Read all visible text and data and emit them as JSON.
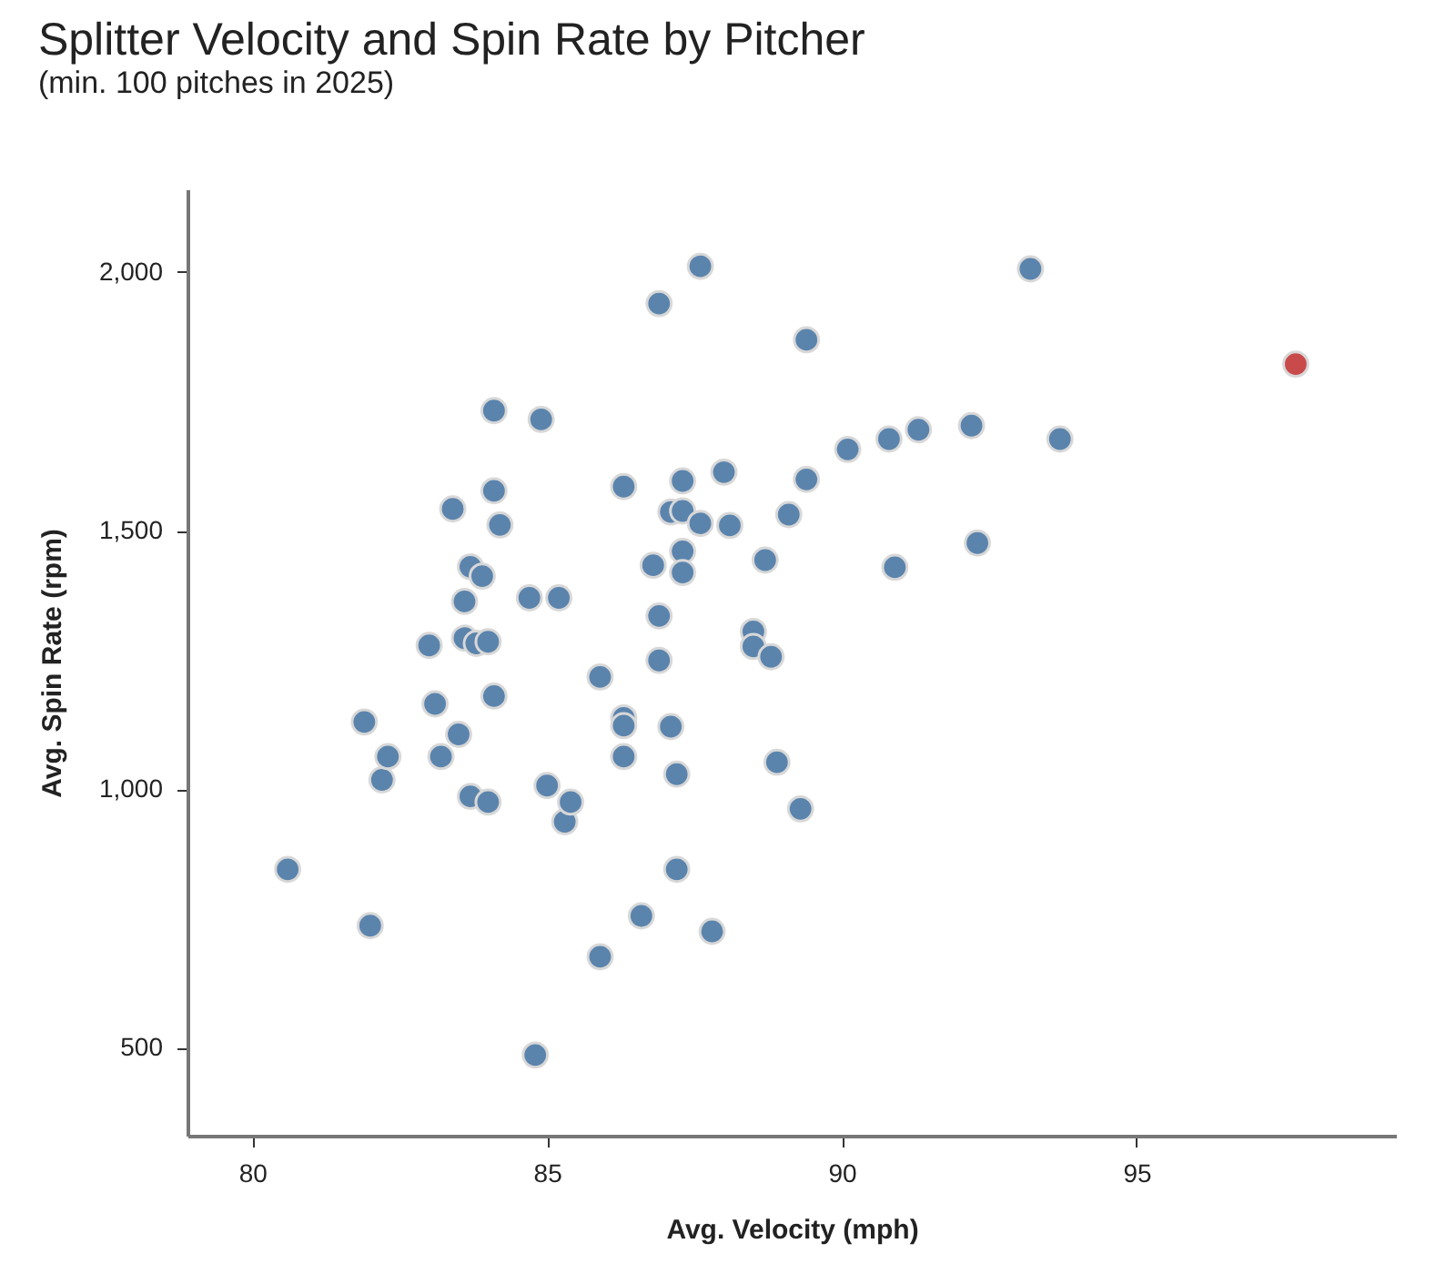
{
  "chart_data": {
    "type": "scatter",
    "title": "Splitter Velocity and Spin Rate by Pitcher",
    "subtitle": "(min. 100 pitches in 2025)",
    "xlabel": "Avg. Velocity (mph)",
    "ylabel": "Avg. Spin Rate (rpm)",
    "xlim": [
      78.9,
      99.4
    ],
    "xticks": [
      80,
      85,
      90,
      95
    ],
    "ylim": [
      330,
      2160
    ],
    "yticks": [
      500,
      {
        "value": 1000,
        "label": "1,000"
      },
      {
        "value": 1500,
        "label": "1,500"
      },
      {
        "value": 2000,
        "label": "2,000"
      }
    ],
    "grid": false,
    "legend": false,
    "marker": "circle",
    "series": [
      {
        "color": "#5b84ad",
        "x": [
          80.6,
          82.0,
          81.9,
          82.2,
          82.3,
          83.0,
          83.1,
          83.2,
          83.4,
          83.5,
          83.6,
          83.7,
          83.6,
          83.7,
          83.8,
          83.9,
          84.0,
          84.0,
          84.1,
          84.1,
          84.1,
          84.2,
          84.7,
          84.8,
          84.9,
          85.0,
          85.2,
          85.3,
          85.4,
          87.6,
          86.9,
          89.4,
          93.2,
          86.3,
          87.3,
          88.0,
          89.4,
          90.1,
          90.8,
          91.3,
          92.2,
          87.1,
          87.3,
          87.6,
          88.1,
          89.1,
          86.8,
          87.3,
          87.3,
          88.7,
          90.9,
          92.3,
          86.9,
          88.5,
          88.5,
          88.8,
          86.9,
          85.9,
          93.7,
          86.3,
          86.3,
          87.1,
          86.3,
          87.2,
          88.9,
          89.3,
          87.2,
          86.6,
          87.8,
          85.9
        ],
        "values": [
          845,
          736,
          1130,
          1018,
          1063,
          1278,
          1165,
          1063,
          1542,
          1106,
          1363,
          1430,
          1292,
          986,
          1282,
          1412,
          1285,
          975,
          1732,
          1577,
          1180,
          1511,
          1370,
          486,
          1715,
          1007,
          1370,
          937,
          975,
          2011,
          1939,
          1869,
          2006,
          1585,
          1596,
          1613,
          1599,
          1657,
          1677,
          1695,
          1703,
          1536,
          1538,
          1514,
          1510,
          1531,
          1433,
          1460,
          1419,
          1443,
          1429,
          1476,
          1335,
          1305,
          1276,
          1256,
          1249,
          1217,
          1677,
          1138,
          1123,
          1121,
          1063,
          1029,
          1052,
          962,
          845,
          755,
          725,
          676
        ]
      },
      {
        "color": "#c94a4a",
        "x": [
          97.7
        ],
        "values": [
          1822
        ]
      }
    ]
  }
}
